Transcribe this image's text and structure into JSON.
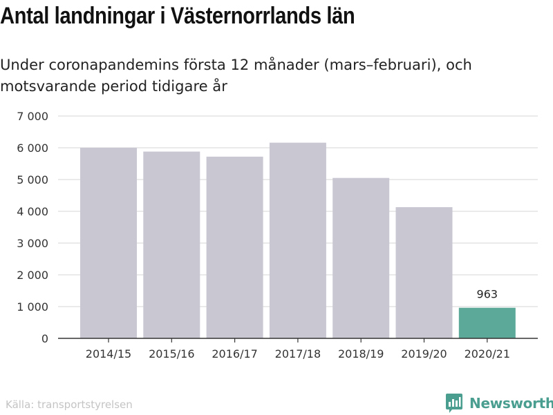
{
  "title": "Antal landningar i Västernorrlands län",
  "subtitle": "Under coronapandemins första 12 månader (mars–februari), och motsvarande period tidigare år",
  "source": "Källa: transportstyrelsen",
  "brand": {
    "name": "Newsworthy",
    "color": "#4a9e90",
    "icon": "bar-chart-logo-icon"
  },
  "colors": {
    "bar": "#c9c7d2",
    "highlight": "#5ca99a",
    "grid": "#dddddd",
    "axis": "#333333"
  },
  "chart_data": {
    "type": "bar",
    "categories": [
      "2014/15",
      "2015/16",
      "2016/17",
      "2017/18",
      "2018/19",
      "2019/20",
      "2020/21"
    ],
    "values": [
      6000,
      5880,
      5720,
      6160,
      5050,
      4130,
      963
    ],
    "highlight_index": 6,
    "data_labels": [
      {
        "index": 6,
        "text": "963"
      }
    ],
    "ylim": [
      0,
      7000
    ],
    "yticks": [
      0,
      1000,
      2000,
      3000,
      4000,
      5000,
      6000,
      7000
    ],
    "ytick_labels": [
      "0",
      "1 000",
      "2 000",
      "3 000",
      "4 000",
      "5 000",
      "6 000",
      "7 000"
    ],
    "grid": true,
    "xlabel": "",
    "ylabel": ""
  }
}
